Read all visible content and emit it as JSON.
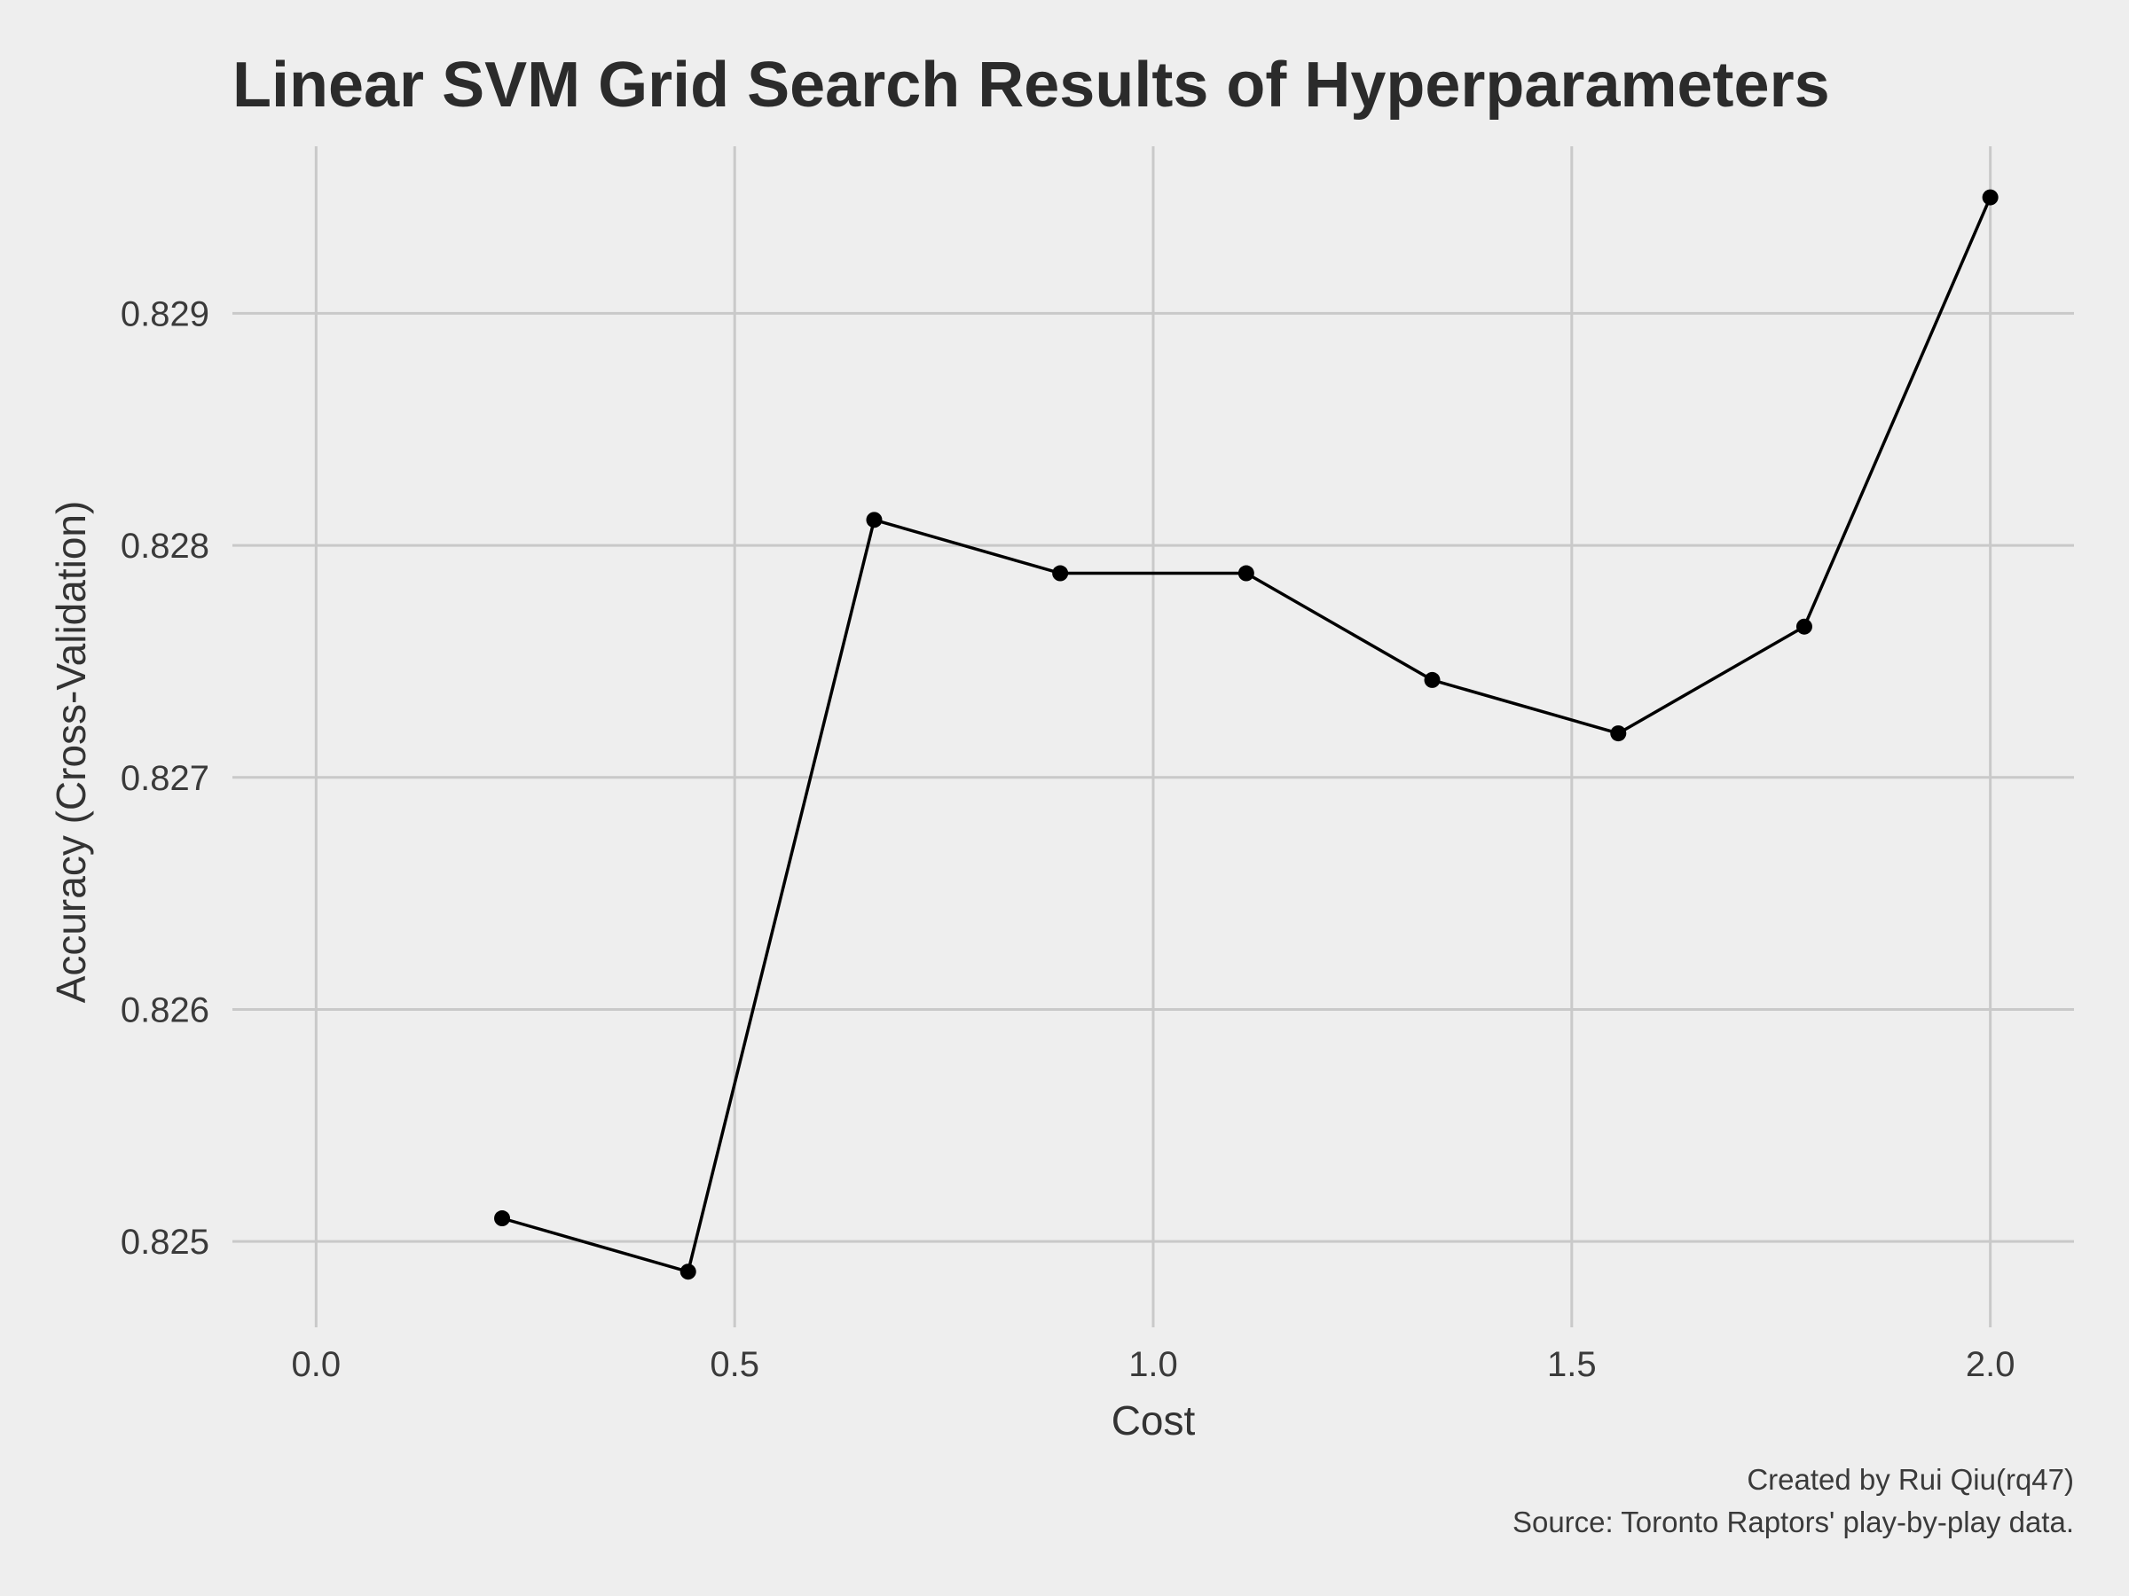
{
  "chart_data": {
    "type": "line",
    "title": "Linear SVM Grid Search Results of Hyperparameters",
    "xlabel": "Cost",
    "ylabel": "Accuracy (Cross-Validation)",
    "xlim": [
      -0.1,
      2.1
    ],
    "ylim": [
      0.82463,
      0.82972
    ],
    "x_ticks": [
      0.0,
      0.5,
      1.0,
      1.5,
      2.0
    ],
    "x_tick_labels": [
      "0.0",
      "0.5",
      "1.0",
      "1.5",
      "2.0"
    ],
    "y_ticks": [
      0.825,
      0.826,
      0.827,
      0.828,
      0.829
    ],
    "y_tick_labels": [
      "0.825",
      "0.826",
      "0.827",
      "0.828",
      "0.829"
    ],
    "grid": true,
    "x": [
      0.2222,
      0.4444,
      0.6667,
      0.8889,
      1.1111,
      1.3333,
      1.5556,
      1.7778,
      2.0
    ],
    "y": [
      0.8251,
      0.82487,
      0.82811,
      0.82788,
      0.82788,
      0.82742,
      0.82719,
      0.82765,
      0.8295
    ],
    "line_color": "#000000",
    "caption_lines": [
      "Created by Rui Qiu(rq47)",
      "Source: Toronto Raptors' play-by-play data."
    ]
  }
}
